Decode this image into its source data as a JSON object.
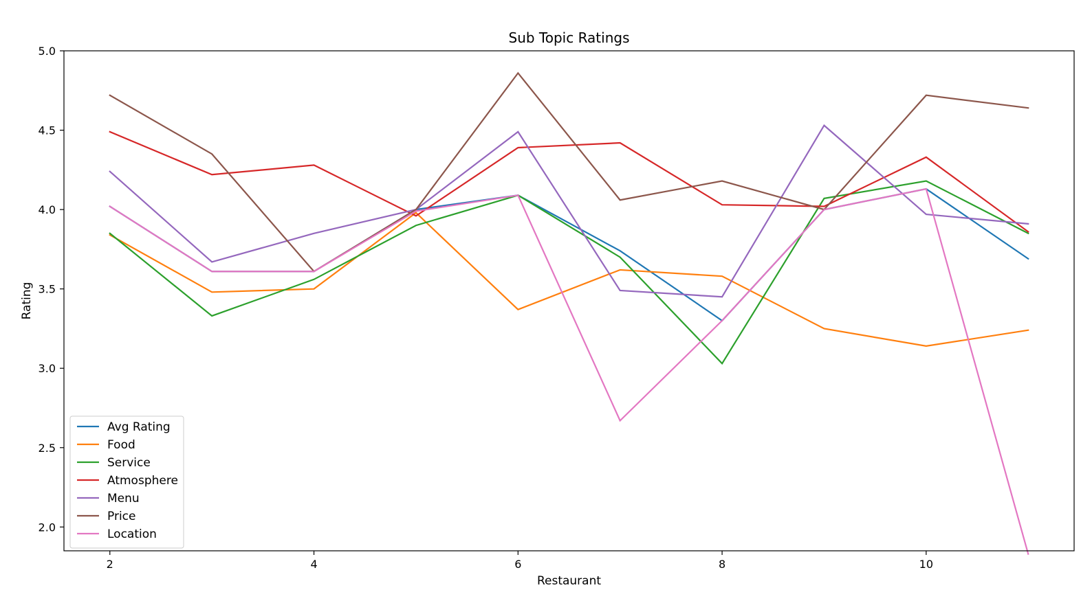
{
  "chart_data": {
    "type": "line",
    "title": "Sub Topic Ratings",
    "xlabel": "Restaurant",
    "ylabel": "Rating",
    "x": [
      2,
      3,
      4,
      5,
      6,
      7,
      8,
      9,
      10,
      11
    ],
    "xlim": [
      1.55,
      11.45
    ],
    "ylim": [
      1.85,
      5.0
    ],
    "xticks": [
      2,
      4,
      6,
      8,
      10
    ],
    "yticks": [
      2.0,
      2.5,
      3.0,
      3.5,
      4.0,
      4.5,
      5.0
    ],
    "xtick_labels": [
      "2",
      "4",
      "6",
      "8",
      "10"
    ],
    "ytick_labels": [
      "2.0",
      "2.5",
      "3.0",
      "3.5",
      "4.0",
      "4.5",
      "5.0"
    ],
    "grid": false,
    "legend_position": "lower-left",
    "series": [
      {
        "name": "Avg Rating",
        "color": "#1f77b4",
        "values": [
          4.02,
          3.61,
          3.61,
          4.0,
          4.09,
          3.74,
          3.3,
          4.0,
          4.13,
          3.69
        ]
      },
      {
        "name": "Food",
        "color": "#ff7f0e",
        "values": [
          3.84,
          3.48,
          3.5,
          3.98,
          3.37,
          3.62,
          3.58,
          3.25,
          3.14,
          3.24
        ]
      },
      {
        "name": "Service",
        "color": "#2ca02c",
        "values": [
          3.85,
          3.33,
          3.56,
          3.9,
          4.09,
          3.7,
          3.03,
          4.07,
          4.18,
          3.85
        ]
      },
      {
        "name": "Atmosphere",
        "color": "#d62728",
        "values": [
          4.49,
          4.22,
          4.28,
          3.96,
          4.39,
          4.42,
          4.03,
          4.02,
          4.33,
          3.86
        ]
      },
      {
        "name": "Menu",
        "color": "#9467bd",
        "values": [
          4.24,
          3.67,
          3.85,
          4.0,
          4.49,
          3.49,
          3.45,
          4.53,
          3.97,
          3.91
        ]
      },
      {
        "name": "Price",
        "color": "#8c564b",
        "values": [
          4.72,
          4.35,
          3.61,
          4.0,
          4.86,
          4.06,
          4.18,
          4.0,
          4.72,
          4.64
        ]
      },
      {
        "name": "Location",
        "color": "#e377c2",
        "values": [
          4.02,
          3.61,
          3.61,
          3.99,
          4.09,
          2.67,
          3.3,
          4.0,
          4.13,
          1.83
        ]
      }
    ]
  }
}
